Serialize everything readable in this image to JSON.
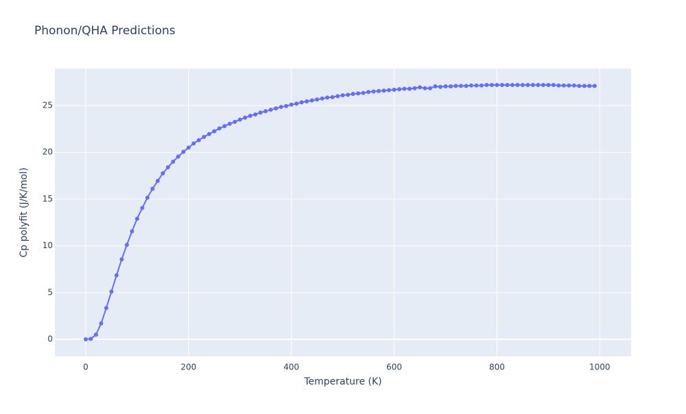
{
  "chart_data": {
    "type": "line",
    "title": "Phonon/QHA Predictions",
    "x_label": "Temperature (K)",
    "y_label": "Cp polyfit (J/K/mol)",
    "x": [
      0,
      10,
      20,
      30,
      40,
      50,
      60,
      70,
      80,
      90,
      100,
      110,
      120,
      130,
      140,
      150,
      160,
      170,
      180,
      190,
      200,
      210,
      220,
      230,
      240,
      250,
      260,
      270,
      280,
      290,
      300,
      310,
      320,
      330,
      340,
      350,
      360,
      370,
      380,
      390,
      400,
      410,
      420,
      430,
      440,
      450,
      460,
      470,
      480,
      490,
      500,
      510,
      520,
      530,
      540,
      550,
      560,
      570,
      580,
      590,
      600,
      610,
      620,
      630,
      640,
      650,
      660,
      670,
      680,
      690,
      700,
      710,
      720,
      730,
      740,
      750,
      760,
      770,
      780,
      790,
      800,
      810,
      820,
      830,
      840,
      850,
      860,
      870,
      880,
      890,
      900,
      910,
      920,
      930,
      940,
      950,
      960,
      970,
      980,
      990
    ],
    "series": [
      {
        "color": "#636efa",
        "values": [
          0,
          0.05,
          0.5,
          1.7,
          3.35,
          5.1,
          6.85,
          8.55,
          10.1,
          11.55,
          12.9,
          14.05,
          15.15,
          16.1,
          16.95,
          17.75,
          18.4,
          19.0,
          19.55,
          20.05,
          20.5,
          20.95,
          21.3,
          21.65,
          21.95,
          22.25,
          22.55,
          22.8,
          23.05,
          23.25,
          23.5,
          23.7,
          23.9,
          24.05,
          24.25,
          24.4,
          24.55,
          24.7,
          24.85,
          24.95,
          25.1,
          25.2,
          25.35,
          25.45,
          25.55,
          25.65,
          25.75,
          25.85,
          25.9,
          26.0,
          26.1,
          26.15,
          26.25,
          26.3,
          26.35,
          26.45,
          26.5,
          26.55,
          26.6,
          26.65,
          26.7,
          26.75,
          26.8,
          26.8,
          26.85,
          26.95,
          26.85,
          26.85,
          27.05,
          27.0,
          27.05,
          27.05,
          27.1,
          27.1,
          27.1,
          27.15,
          27.15,
          27.15,
          27.2,
          27.2,
          27.2,
          27.2,
          27.2,
          27.2,
          27.2,
          27.2,
          27.2,
          27.2,
          27.2,
          27.2,
          27.2,
          27.2,
          27.15,
          27.15,
          27.15,
          27.15,
          27.1,
          27.1,
          27.1,
          27.1
        ]
      }
    ],
    "xlim": [
      -60,
      1061
    ],
    "ylim": [
      -1.83,
      28.96
    ],
    "xticks": [
      0,
      200,
      400,
      600,
      800,
      1000
    ],
    "yticks": [
      0,
      5,
      10,
      15,
      20,
      25
    ],
    "grid": true
  }
}
